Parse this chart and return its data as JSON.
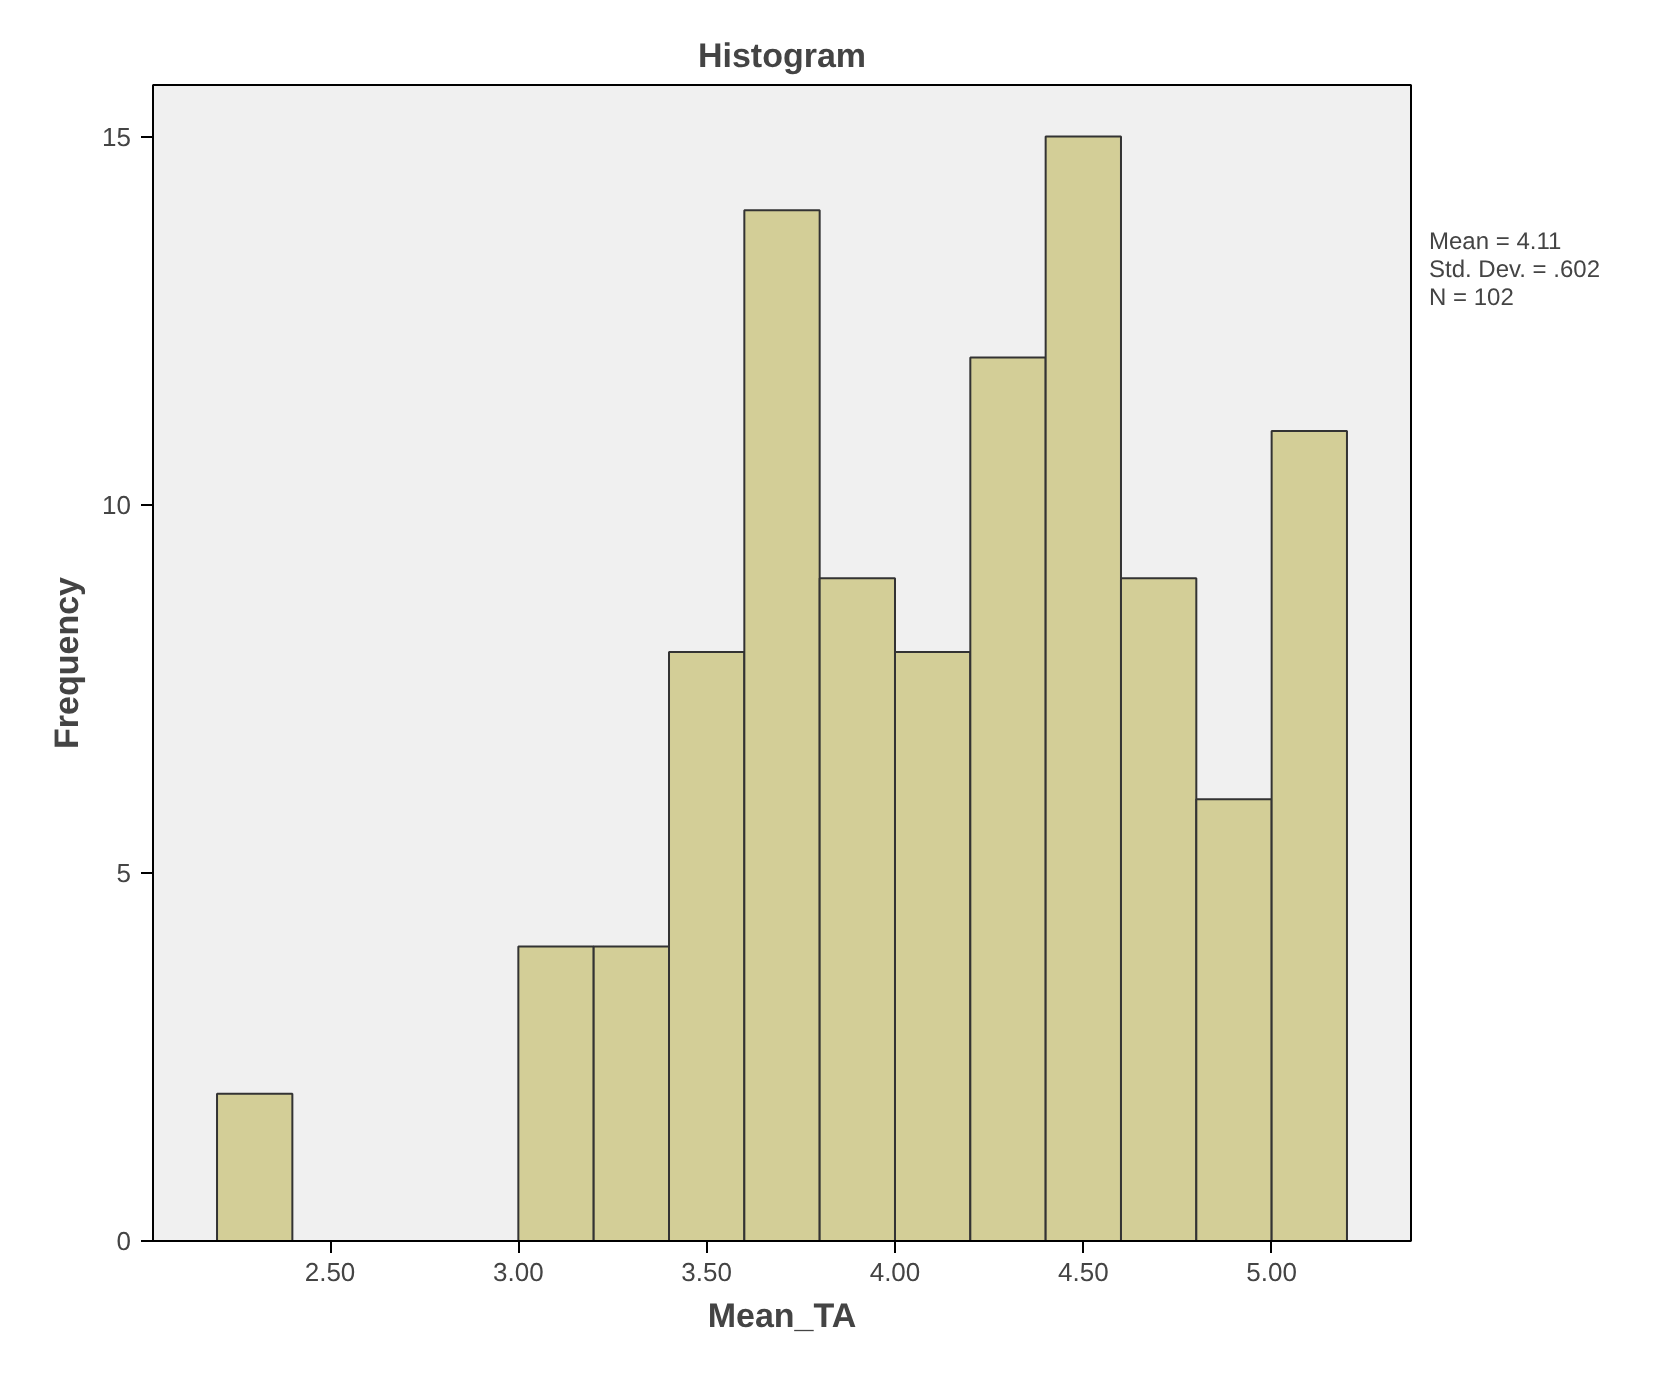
{
  "chart_data": {
    "type": "histogram",
    "title": "Histogram",
    "xlabel": "Mean_TA",
    "ylabel": "Frequency",
    "bins": [
      2.2,
      2.4,
      2.6,
      2.8,
      3.0,
      3.2,
      3.4,
      3.6,
      3.8,
      4.0,
      4.2,
      4.4,
      4.6,
      4.8,
      5.0,
      5.2
    ],
    "values": [
      2,
      0,
      0,
      0,
      4,
      4,
      8,
      14,
      9,
      8,
      12,
      15,
      9,
      6,
      11
    ],
    "color": "#d3ce97",
    "xlim": [
      2.03,
      5.37
    ],
    "ylim": [
      0,
      15.7
    ],
    "xticks": [
      {
        "value": 2.5,
        "label": "2.50"
      },
      {
        "value": 3.0,
        "label": "3.00"
      },
      {
        "value": 3.5,
        "label": "3.50"
      },
      {
        "value": 4.0,
        "label": "4.00"
      },
      {
        "value": 4.5,
        "label": "4.50"
      },
      {
        "value": 5.0,
        "label": "5.00"
      }
    ],
    "yticks": [
      0,
      5,
      10,
      15
    ],
    "annotations": [
      "Mean = 4.11",
      "Std. Dev. = .602",
      "N = 102"
    ]
  }
}
